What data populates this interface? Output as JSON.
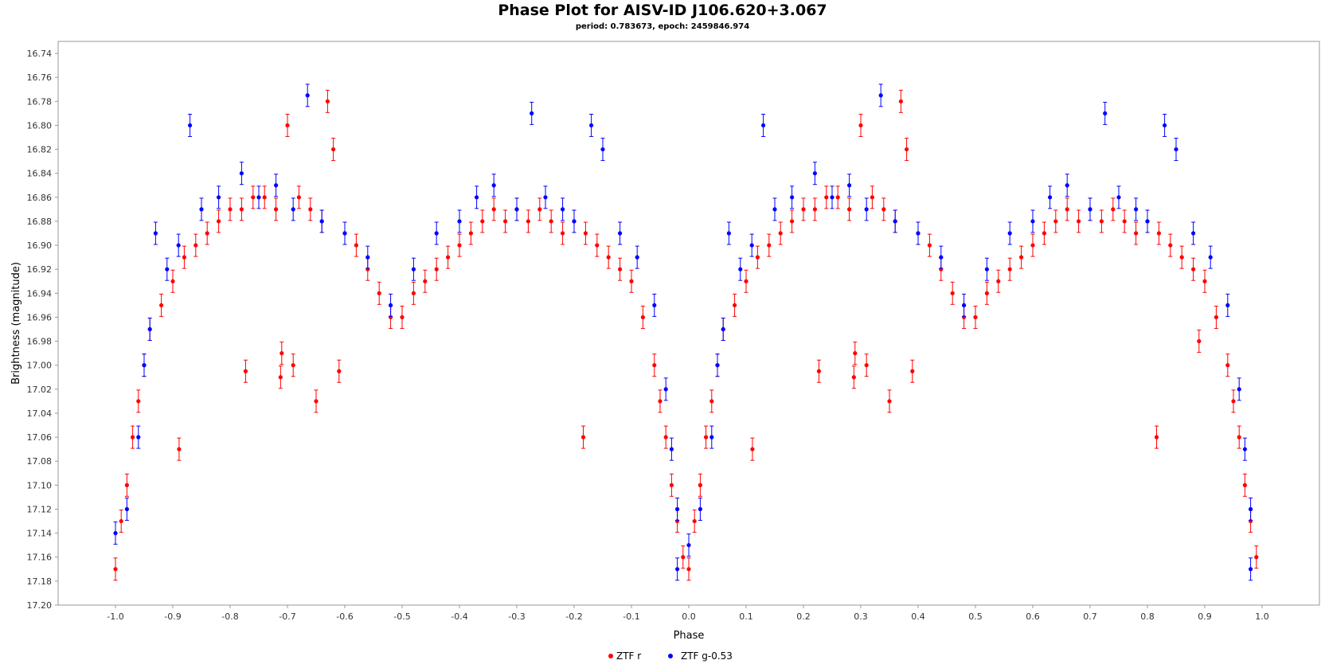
{
  "chart_data": {
    "type": "scatter",
    "title": "Phase Plot for AISV-ID J106.620+3.067",
    "subtitle": "period: 0.783673, epoch: 2459846.974",
    "xlabel": "Phase",
    "ylabel": "Brightness (magnitude)",
    "xlim": [
      -1.1,
      1.1
    ],
    "ylim": [
      17.2,
      16.73
    ],
    "y_inverted": true,
    "x_ticks": [
      "-1.0",
      "-0.9",
      "-0.8",
      "-0.7",
      "-0.6",
      "-0.5",
      "-0.4",
      "-0.3",
      "-0.2",
      "-0.1",
      "0.0",
      "0.1",
      "0.2",
      "0.3",
      "0.4",
      "0.5",
      "0.6",
      "0.7",
      "0.8",
      "0.9",
      "1.0"
    ],
    "y_ticks": [
      "16.74",
      "16.76",
      "16.78",
      "16.80",
      "16.82",
      "16.84",
      "16.86",
      "16.88",
      "16.90",
      "16.92",
      "16.94",
      "16.96",
      "16.98",
      "17.00",
      "17.02",
      "17.04",
      "17.06",
      "17.08",
      "17.10",
      "17.12",
      "17.14",
      "17.16",
      "17.18",
      "17.20"
    ],
    "grid": false,
    "legend_position": "bottom-center",
    "error_bars": true,
    "series": [
      {
        "name": "ZTF r",
        "color": "#ff0000",
        "points": [
          [
            0.0,
            17.17
          ],
          [
            0.01,
            17.13
          ],
          [
            0.02,
            17.1
          ],
          [
            0.03,
            17.06
          ],
          [
            0.04,
            17.03
          ],
          [
            0.05,
            17.0
          ],
          [
            0.06,
            16.97
          ],
          [
            0.08,
            16.95
          ],
          [
            0.1,
            16.93
          ],
          [
            0.111,
            17.07
          ],
          [
            0.12,
            16.91
          ],
          [
            0.14,
            16.9
          ],
          [
            0.16,
            16.89
          ],
          [
            0.18,
            16.88
          ],
          [
            0.2,
            16.87
          ],
          [
            0.22,
            16.87
          ],
          [
            0.227,
            17.005
          ],
          [
            0.24,
            16.86
          ],
          [
            0.26,
            16.86
          ],
          [
            0.28,
            16.87
          ],
          [
            0.288,
            17.01
          ],
          [
            0.29,
            16.99
          ],
          [
            0.3,
            16.8
          ],
          [
            0.31,
            17.0
          ],
          [
            0.32,
            16.86
          ],
          [
            0.34,
            16.87
          ],
          [
            0.35,
            17.03
          ],
          [
            0.36,
            16.88
          ],
          [
            0.37,
            16.78
          ],
          [
            0.38,
            16.82
          ],
          [
            0.39,
            17.005
          ],
          [
            0.4,
            16.89
          ],
          [
            0.42,
            16.9
          ],
          [
            0.44,
            16.92
          ],
          [
            0.46,
            16.94
          ],
          [
            0.48,
            16.96
          ],
          [
            0.5,
            16.96
          ],
          [
            0.52,
            16.94
          ],
          [
            0.54,
            16.93
          ],
          [
            0.56,
            16.92
          ],
          [
            0.58,
            16.91
          ],
          [
            0.6,
            16.9
          ],
          [
            0.62,
            16.89
          ],
          [
            0.64,
            16.88
          ],
          [
            0.66,
            16.87
          ],
          [
            0.68,
            16.88
          ],
          [
            0.7,
            16.87
          ],
          [
            0.72,
            16.88
          ],
          [
            0.74,
            16.87
          ],
          [
            0.76,
            16.88
          ],
          [
            0.78,
            16.89
          ],
          [
            0.8,
            16.88
          ],
          [
            0.816,
            17.06
          ],
          [
            0.82,
            16.89
          ],
          [
            0.84,
            16.9
          ],
          [
            0.86,
            16.91
          ],
          [
            0.88,
            16.92
          ],
          [
            0.89,
            16.98
          ],
          [
            0.9,
            16.93
          ],
          [
            0.92,
            16.96
          ],
          [
            0.94,
            17.0
          ],
          [
            0.95,
            17.03
          ],
          [
            0.96,
            17.06
          ],
          [
            0.97,
            17.1
          ],
          [
            0.98,
            17.13
          ],
          [
            0.99,
            17.16
          ],
          [
            -1.0,
            17.17
          ],
          [
            -0.99,
            17.13
          ],
          [
            -0.98,
            17.1
          ],
          [
            -0.97,
            17.06
          ],
          [
            -0.96,
            17.03
          ],
          [
            -0.95,
            17.0
          ],
          [
            -0.94,
            16.97
          ],
          [
            -0.92,
            16.95
          ],
          [
            -0.9,
            16.93
          ],
          [
            -0.889,
            17.07
          ],
          [
            -0.88,
            16.91
          ],
          [
            -0.86,
            16.9
          ],
          [
            -0.84,
            16.89
          ],
          [
            -0.82,
            16.88
          ],
          [
            -0.8,
            16.87
          ],
          [
            -0.78,
            16.87
          ],
          [
            -0.773,
            17.005
          ],
          [
            -0.76,
            16.86
          ],
          [
            -0.74,
            16.86
          ],
          [
            -0.72,
            16.87
          ],
          [
            -0.712,
            17.01
          ],
          [
            -0.71,
            16.99
          ],
          [
            -0.7,
            16.8
          ],
          [
            -0.69,
            17.0
          ],
          [
            -0.68,
            16.86
          ],
          [
            -0.66,
            16.87
          ],
          [
            -0.65,
            17.03
          ],
          [
            -0.64,
            16.88
          ],
          [
            -0.63,
            16.78
          ],
          [
            -0.62,
            16.82
          ],
          [
            -0.61,
            17.005
          ],
          [
            -0.6,
            16.89
          ],
          [
            -0.58,
            16.9
          ],
          [
            -0.56,
            16.92
          ],
          [
            -0.54,
            16.94
          ],
          [
            -0.52,
            16.96
          ],
          [
            -0.5,
            16.96
          ],
          [
            -0.48,
            16.94
          ],
          [
            -0.46,
            16.93
          ],
          [
            -0.44,
            16.92
          ],
          [
            -0.42,
            16.91
          ],
          [
            -0.4,
            16.9
          ],
          [
            -0.38,
            16.89
          ],
          [
            -0.36,
            16.88
          ],
          [
            -0.34,
            16.87
          ],
          [
            -0.32,
            16.88
          ],
          [
            -0.3,
            16.87
          ],
          [
            -0.28,
            16.88
          ],
          [
            -0.26,
            16.87
          ],
          [
            -0.24,
            16.88
          ],
          [
            -0.22,
            16.89
          ],
          [
            -0.2,
            16.88
          ],
          [
            -0.184,
            17.06
          ],
          [
            -0.18,
            16.89
          ],
          [
            -0.16,
            16.9
          ],
          [
            -0.14,
            16.91
          ],
          [
            -0.12,
            16.92
          ],
          [
            -0.1,
            16.93
          ],
          [
            -0.08,
            16.96
          ],
          [
            -0.06,
            17.0
          ],
          [
            -0.05,
            17.03
          ],
          [
            -0.04,
            17.06
          ],
          [
            -0.03,
            17.1
          ],
          [
            -0.02,
            17.13
          ],
          [
            -0.01,
            17.16
          ]
        ]
      },
      {
        "name": "ZTF g-0.53",
        "color": "#0000ff",
        "points": [
          [
            0.0,
            17.15
          ],
          [
            0.02,
            17.12
          ],
          [
            0.04,
            17.06
          ],
          [
            0.05,
            17.0
          ],
          [
            0.06,
            16.97
          ],
          [
            0.07,
            16.89
          ],
          [
            0.09,
            16.92
          ],
          [
            0.11,
            16.9
          ],
          [
            0.13,
            16.8
          ],
          [
            0.15,
            16.87
          ],
          [
            0.18,
            16.86
          ],
          [
            0.22,
            16.84
          ],
          [
            0.25,
            16.86
          ],
          [
            0.28,
            16.85
          ],
          [
            0.31,
            16.87
          ],
          [
            0.335,
            16.775
          ],
          [
            0.36,
            16.88
          ],
          [
            0.4,
            16.89
          ],
          [
            0.44,
            16.91
          ],
          [
            0.48,
            16.95
          ],
          [
            0.52,
            16.92
          ],
          [
            0.56,
            16.89
          ],
          [
            0.6,
            16.88
          ],
          [
            0.63,
            16.86
          ],
          [
            0.66,
            16.85
          ],
          [
            0.7,
            16.87
          ],
          [
            0.726,
            16.79
          ],
          [
            0.75,
            16.86
          ],
          [
            0.78,
            16.87
          ],
          [
            0.8,
            16.88
          ],
          [
            0.83,
            16.8
          ],
          [
            0.85,
            16.82
          ],
          [
            0.88,
            16.89
          ],
          [
            0.91,
            16.91
          ],
          [
            0.94,
            16.95
          ],
          [
            0.96,
            17.02
          ],
          [
            0.97,
            17.07
          ],
          [
            0.98,
            17.12
          ],
          [
            0.98,
            17.17
          ],
          [
            -1.0,
            17.14
          ],
          [
            -0.98,
            17.12
          ],
          [
            -0.96,
            17.06
          ],
          [
            -0.95,
            17.0
          ],
          [
            -0.94,
            16.97
          ],
          [
            -0.93,
            16.89
          ],
          [
            -0.91,
            16.92
          ],
          [
            -0.89,
            16.9
          ],
          [
            -0.87,
            16.8
          ],
          [
            -0.85,
            16.87
          ],
          [
            -0.82,
            16.86
          ],
          [
            -0.78,
            16.84
          ],
          [
            -0.75,
            16.86
          ],
          [
            -0.72,
            16.85
          ],
          [
            -0.69,
            16.87
          ],
          [
            -0.665,
            16.775
          ],
          [
            -0.64,
            16.88
          ],
          [
            -0.6,
            16.89
          ],
          [
            -0.56,
            16.91
          ],
          [
            -0.52,
            16.95
          ],
          [
            -0.48,
            16.92
          ],
          [
            -0.44,
            16.89
          ],
          [
            -0.4,
            16.88
          ],
          [
            -0.37,
            16.86
          ],
          [
            -0.34,
            16.85
          ],
          [
            -0.3,
            16.87
          ],
          [
            -0.274,
            16.79
          ],
          [
            -0.25,
            16.86
          ],
          [
            -0.22,
            16.87
          ],
          [
            -0.2,
            16.88
          ],
          [
            -0.17,
            16.8
          ],
          [
            -0.15,
            16.82
          ],
          [
            -0.12,
            16.89
          ],
          [
            -0.09,
            16.91
          ],
          [
            -0.06,
            16.95
          ],
          [
            -0.04,
            17.02
          ],
          [
            -0.03,
            17.07
          ],
          [
            -0.02,
            17.12
          ],
          [
            -0.02,
            17.17
          ]
        ]
      }
    ]
  }
}
